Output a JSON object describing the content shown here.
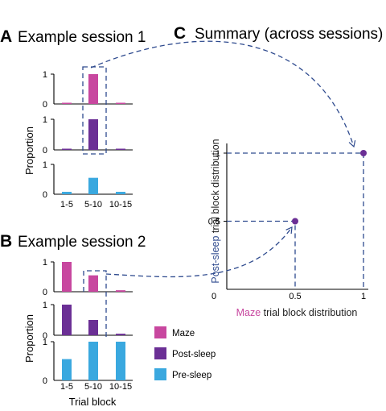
{
  "panels": {
    "a": {
      "letter": "A",
      "title": "Example session 1"
    },
    "b": {
      "letter": "B",
      "title": "Example session 2"
    },
    "c": {
      "letter": "C",
      "title": "Summary (across sessions)"
    }
  },
  "colors": {
    "maze": "#c8479f",
    "post_sleep": "#6b2f95",
    "pre_sleep": "#3aa8df",
    "dash": "#2e4a8e",
    "point": "#6b2f95",
    "axis": "#000000"
  },
  "legend": {
    "items": [
      {
        "label": "Maze",
        "color": "#c8479f"
      },
      {
        "label": "Post-sleep",
        "color": "#6b2f95"
      },
      {
        "label": "Pre-sleep",
        "color": "#3aa8df"
      }
    ]
  },
  "labels": {
    "proportion": "Proportion",
    "trial_block": "Trial block",
    "c_y_color_word": "Post-sleep",
    "c_y_rest": " trial block distribution",
    "c_x_color_word": "Maze",
    "c_x_rest": " trial block distribution"
  },
  "chart_data": [
    {
      "type": "bar",
      "panel": "A",
      "title": "Example session 1",
      "categories": [
        "1-5",
        "5-10",
        "10-15"
      ],
      "ylabel": "Proportion",
      "ylim": [
        0,
        1
      ],
      "series": [
        {
          "name": "Maze",
          "values": [
            0.02,
            1.0,
            0.02
          ]
        },
        {
          "name": "Post-sleep",
          "values": [
            0.02,
            1.0,
            0.02
          ]
        },
        {
          "name": "Pre-sleep",
          "values": [
            0.08,
            0.55,
            0.08
          ]
        }
      ]
    },
    {
      "type": "bar",
      "panel": "B",
      "title": "Example session 2",
      "categories": [
        "1-5",
        "5-10",
        "10-15"
      ],
      "xlabel": "Trial block",
      "ylabel": "Proportion",
      "ylim": [
        0,
        1
      ],
      "series": [
        {
          "name": "Maze",
          "values": [
            1.0,
            0.55,
            0.05
          ]
        },
        {
          "name": "Post-sleep",
          "values": [
            1.0,
            0.5,
            0.05
          ]
        },
        {
          "name": "Pre-sleep",
          "values": [
            0.55,
            1.0,
            1.0
          ]
        }
      ]
    },
    {
      "type": "scatter",
      "panel": "C",
      "title": "Summary (across sessions)",
      "xlabel": "Maze trial block distribution",
      "ylabel": "Post-sleep trial block distribution",
      "xlim": [
        0,
        1
      ],
      "ylim": [
        0,
        1
      ],
      "xticks": [
        "0",
        "0.5",
        "1"
      ],
      "yticks": [
        "0.5",
        "1"
      ],
      "points": [
        {
          "x": 0.5,
          "y": 0.5
        },
        {
          "x": 1.0,
          "y": 1.0
        }
      ]
    }
  ]
}
